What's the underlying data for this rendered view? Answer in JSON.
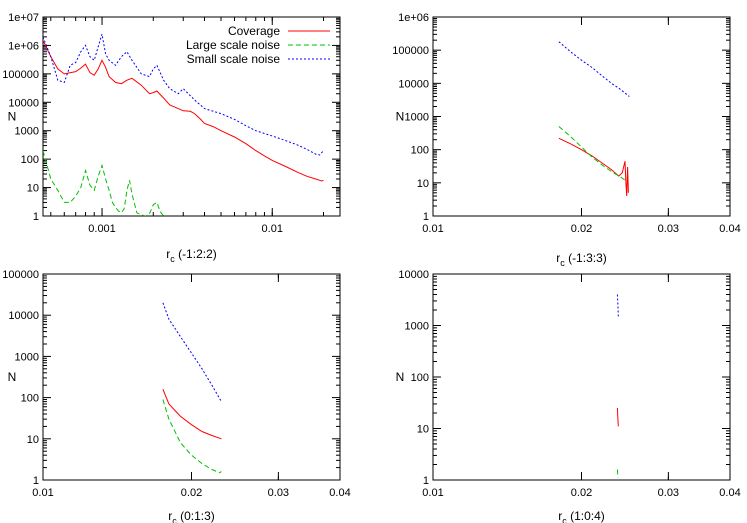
{
  "chart_data": [
    {
      "type": "line",
      "ylabel": "N",
      "xlabel_main": "r",
      "xlabel_sub": "c",
      "xlabel_tail": " (-1:2:2)",
      "xscale": "log",
      "yscale": "log",
      "xlim": [
        0.00045,
        0.025
      ],
      "ylim": [
        1,
        10000000
      ],
      "xticks": [
        {
          "value": 0.001,
          "label": "0.001"
        },
        {
          "value": 0.01,
          "label": "0.01"
        }
      ],
      "yticks": [
        {
          "value": 1,
          "label": "1"
        },
        {
          "value": 10,
          "label": "10"
        },
        {
          "value": 100,
          "label": "100"
        },
        {
          "value": 1000,
          "label": "1000"
        },
        {
          "value": 10000,
          "label": "10000"
        },
        {
          "value": 100000,
          "label": "100000"
        },
        {
          "value": 1000000,
          "label": "1e+06"
        },
        {
          "value": 10000000,
          "label": "1e+07"
        }
      ],
      "legend_position": "top-right",
      "series": [
        {
          "name": "Coverage",
          "color": "#ff0000",
          "dash": "",
          "x": [
            0.00045,
            0.0005,
            0.00055,
            0.0006,
            0.0007,
            0.00075,
            0.0008,
            0.00085,
            0.0009,
            0.00095,
            0.001,
            0.00105,
            0.0011,
            0.0012,
            0.0013,
            0.0014,
            0.0015,
            0.0017,
            0.0019,
            0.002,
            0.0021,
            0.0023,
            0.0025,
            0.0028,
            0.003,
            0.0033,
            0.0035,
            0.0038,
            0.004,
            0.0045,
            0.005,
            0.006,
            0.007,
            0.008,
            0.009,
            0.01,
            0.012,
            0.014,
            0.016,
            0.018,
            0.019,
            0.0195,
            0.02
          ],
          "y": [
            1500000,
            400000,
            150000,
            100000,
            120000,
            160000,
            220000,
            110000,
            90000,
            150000,
            300000,
            170000,
            80000,
            50000,
            45000,
            60000,
            70000,
            40000,
            20000,
            22000,
            25000,
            14000,
            8000,
            6000,
            5000,
            4800,
            4000,
            2500,
            1800,
            1400,
            1000,
            600,
            350,
            200,
            130,
            90,
            55,
            35,
            25,
            20,
            18,
            17,
            18
          ]
        },
        {
          "name": "Large scale noise",
          "color": "#00c000",
          "dash": "5,3",
          "x": [
            0.00045,
            0.0005,
            0.00055,
            0.0006,
            0.00065,
            0.0007,
            0.00075,
            0.0008,
            0.00085,
            0.0009,
            0.00095,
            0.001,
            0.00105,
            0.0011,
            0.00115,
            0.0012,
            0.00125,
            0.0013,
            0.00135,
            0.0014,
            0.00145,
            0.0015,
            0.0016,
            0.0017,
            0.0018,
            0.0019,
            0.002,
            0.0021,
            0.0022,
            0.0023
          ],
          "y": [
            200,
            20,
            8,
            3,
            3,
            5,
            10,
            40,
            12,
            8,
            25,
            60,
            20,
            8,
            3,
            2,
            1.5,
            1.3,
            1.8,
            8,
            18,
            6,
            1.3,
            1.1,
            1.0,
            1.2,
            2.5,
            3,
            1.4,
            1.0
          ]
        },
        {
          "name": "Small scale noise",
          "color": "#0000ff",
          "dash": "2,2",
          "x": [
            0.00045,
            0.0005,
            0.00055,
            0.0006,
            0.00065,
            0.0007,
            0.00075,
            0.0008,
            0.00085,
            0.0009,
            0.00095,
            0.001,
            0.00105,
            0.0011,
            0.0012,
            0.0013,
            0.0014,
            0.0015,
            0.0017,
            0.0019,
            0.002,
            0.0021,
            0.0023,
            0.0025,
            0.0028,
            0.003,
            0.0035,
            0.004,
            0.005,
            0.006,
            0.007,
            0.008,
            0.01,
            0.012,
            0.014,
            0.016,
            0.018,
            0.019,
            0.02
          ],
          "y": [
            2000000,
            400000,
            60000,
            50000,
            200000,
            250000,
            600000,
            1000000,
            400000,
            300000,
            900000,
            2500000,
            500000,
            300000,
            200000,
            400000,
            600000,
            300000,
            100000,
            80000,
            150000,
            200000,
            60000,
            30000,
            20000,
            30000,
            12000,
            6000,
            4000,
            2500,
            1500,
            1000,
            650,
            450,
            320,
            220,
            150,
            140,
            200
          ]
        }
      ]
    },
    {
      "type": "line",
      "ylabel": "N",
      "xlabel_main": "r",
      "xlabel_sub": "c",
      "xlabel_tail": " (-1:3:3)",
      "xscale": "log",
      "yscale": "log",
      "xlim": [
        0.01,
        0.04
      ],
      "ylim": [
        1,
        1000000
      ],
      "xticks": [
        {
          "value": 0.01,
          "label": "0.01"
        },
        {
          "value": 0.02,
          "label": "0.02"
        },
        {
          "value": 0.03,
          "label": "0.03"
        },
        {
          "value": 0.04,
          "label": "0.04"
        }
      ],
      "yticks": [
        {
          "value": 1,
          "label": "1"
        },
        {
          "value": 10,
          "label": "10"
        },
        {
          "value": 100,
          "label": "100"
        },
        {
          "value": 1000,
          "label": "1000"
        },
        {
          "value": 10000,
          "label": "10000"
        },
        {
          "value": 100000,
          "label": "100000"
        },
        {
          "value": 1000000,
          "label": "1e+06"
        }
      ],
      "series": [
        {
          "color": "#ff0000",
          "dash": "",
          "x": [
            0.018,
            0.019,
            0.02,
            0.021,
            0.022,
            0.023,
            0.0238,
            0.0242,
            0.0245,
            0.0246,
            0.0247,
            0.0248,
            0.0249
          ],
          "y": [
            220,
            150,
            100,
            65,
            40,
            25,
            16,
            20,
            45,
            10,
            4,
            30,
            5
          ]
        },
        {
          "color": "#00c000",
          "dash": "5,3",
          "x": [
            0.018,
            0.019,
            0.02,
            0.021,
            0.022,
            0.023,
            0.024,
            0.0245
          ],
          "y": [
            500,
            250,
            120,
            60,
            35,
            22,
            15,
            12
          ]
        },
        {
          "color": "#0000ff",
          "dash": "2,2",
          "x": [
            0.018,
            0.019,
            0.02,
            0.021,
            0.022,
            0.023,
            0.024,
            0.025
          ],
          "y": [
            180000,
            90000,
            50000,
            30000,
            17000,
            10000,
            6500,
            4000
          ]
        }
      ]
    },
    {
      "type": "line",
      "ylabel": "N",
      "xlabel_main": "r",
      "xlabel_sub": "c",
      "xlabel_tail": " (0:1:3)",
      "xscale": "log",
      "yscale": "log",
      "xlim": [
        0.01,
        0.04
      ],
      "ylim": [
        1,
        100000
      ],
      "xticks": [
        {
          "value": 0.01,
          "label": "0.01"
        },
        {
          "value": 0.02,
          "label": "0.02"
        },
        {
          "value": 0.03,
          "label": "0.03"
        },
        {
          "value": 0.04,
          "label": "0.04"
        }
      ],
      "yticks": [
        {
          "value": 1,
          "label": "1"
        },
        {
          "value": 10,
          "label": "10"
        },
        {
          "value": 100,
          "label": "100"
        },
        {
          "value": 1000,
          "label": "1000"
        },
        {
          "value": 10000,
          "label": "10000"
        },
        {
          "value": 100000,
          "label": "100000"
        }
      ],
      "series": [
        {
          "color": "#ff0000",
          "dash": "",
          "x": [
            0.0175,
            0.018,
            0.019,
            0.02,
            0.021,
            0.022,
            0.023
          ],
          "y": [
            160,
            70,
            35,
            22,
            15,
            12,
            10
          ]
        },
        {
          "color": "#00c000",
          "dash": "5,3",
          "x": [
            0.0175,
            0.018,
            0.019,
            0.02,
            0.021,
            0.022,
            0.0228,
            0.023
          ],
          "y": [
            90,
            30,
            8,
            4,
            2.5,
            1.8,
            1.5,
            1.6
          ]
        },
        {
          "color": "#0000ff",
          "dash": "2,2",
          "x": [
            0.0175,
            0.018,
            0.019,
            0.02,
            0.021,
            0.022,
            0.023
          ],
          "y": [
            20000,
            8000,
            3000,
            1200,
            500,
            200,
            80
          ]
        }
      ]
    },
    {
      "type": "line",
      "ylabel": "N",
      "xlabel_main": "r",
      "xlabel_sub": "c",
      "xlabel_tail": " (1:0:4)",
      "xscale": "log",
      "yscale": "log",
      "xlim": [
        0.01,
        0.04
      ],
      "ylim": [
        1,
        10000
      ],
      "xticks": [
        {
          "value": 0.01,
          "label": "0.01"
        },
        {
          "value": 0.02,
          "label": "0.02"
        },
        {
          "value": 0.03,
          "label": "0.03"
        },
        {
          "value": 0.04,
          "label": "0.04"
        }
      ],
      "yticks": [
        {
          "value": 1,
          "label": "1"
        },
        {
          "value": 10,
          "label": "10"
        },
        {
          "value": 100,
          "label": "100"
        },
        {
          "value": 1000,
          "label": "1000"
        },
        {
          "value": 10000,
          "label": "10000"
        }
      ],
      "series": [
        {
          "color": "#ff0000",
          "dash": "",
          "x": [
            0.02365,
            0.0237,
            0.02375
          ],
          "y": [
            25,
            15,
            11
          ]
        },
        {
          "color": "#00c000",
          "dash": "5,3",
          "x": [
            0.02365,
            0.0237
          ],
          "y": [
            1.6,
            1.1
          ]
        },
        {
          "color": "#0000ff",
          "dash": "2,2",
          "x": [
            0.02365,
            0.0237,
            0.02375
          ],
          "y": [
            4000,
            2500,
            1500
          ]
        }
      ]
    }
  ]
}
